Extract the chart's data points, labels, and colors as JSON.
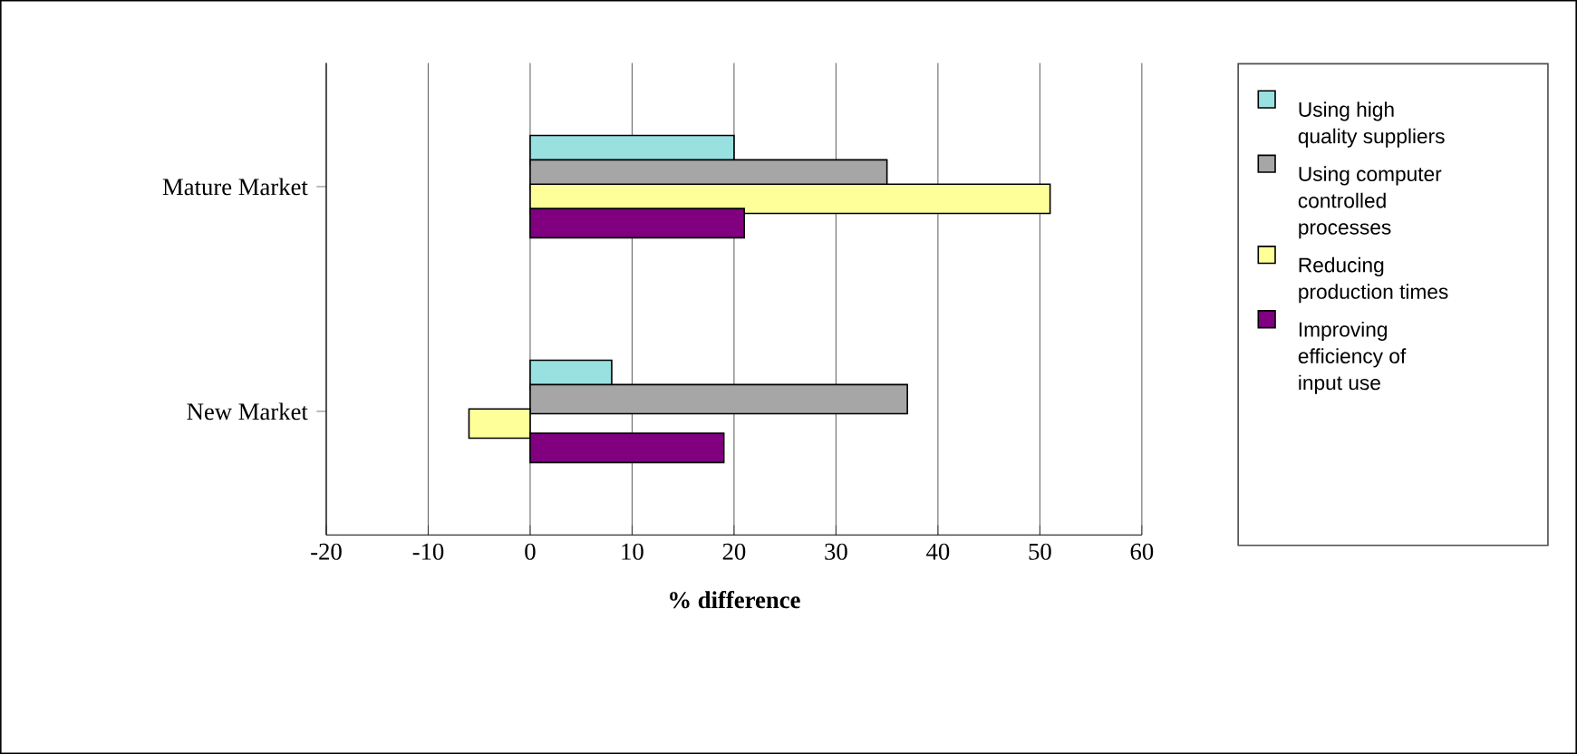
{
  "chart_data": {
    "type": "bar",
    "orientation": "horizontal",
    "xlabel": "% difference",
    "categories": [
      "Mature Market",
      "New Market"
    ],
    "series": [
      {
        "name": "Using high quality suppliers",
        "color": "#99e0e0",
        "values": [
          20,
          8
        ]
      },
      {
        "name": "Using computer controlled processes",
        "color": "#a6a6a6",
        "values": [
          35,
          37
        ]
      },
      {
        "name": "Reducing production times",
        "color": "#ffff99",
        "values": [
          51,
          -6
        ]
      },
      {
        "name": "Improving efficiency of input use",
        "color": "#800080",
        "values": [
          21,
          19
        ]
      }
    ],
    "xlim": [
      -20,
      60
    ],
    "xticks": [
      -20,
      -10,
      0,
      10,
      20,
      30,
      40,
      50,
      60
    ],
    "grid": "x",
    "legend": "right"
  }
}
